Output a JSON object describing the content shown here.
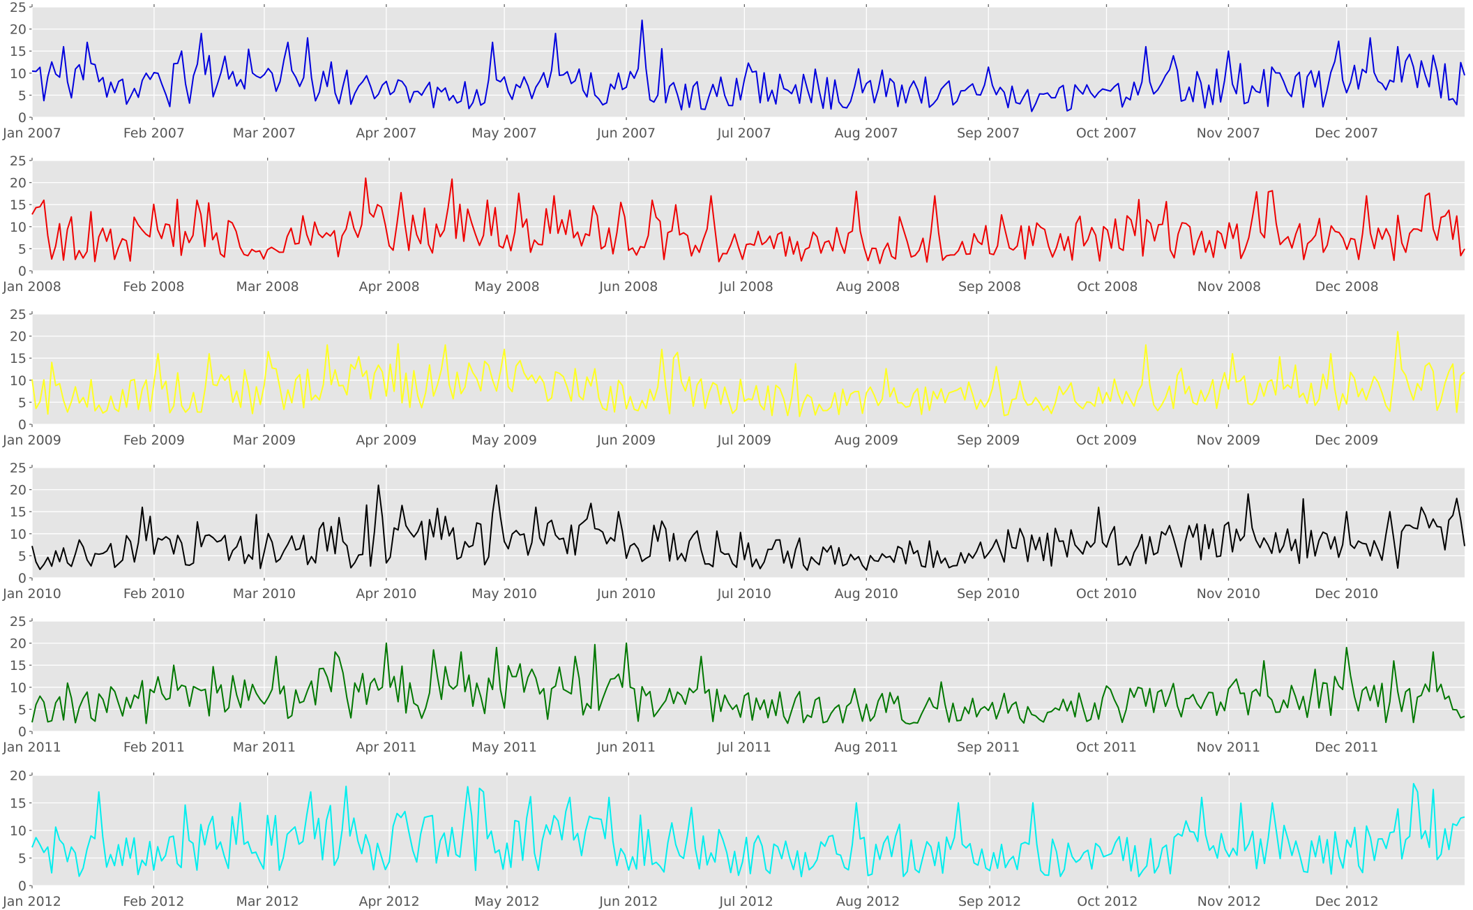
{
  "chart_data": [
    {
      "type": "line",
      "series": [
        {
          "color": "#0000dd"
        }
      ],
      "year": 2007,
      "ylim": [
        0,
        25
      ],
      "yticks": [
        "0",
        "5",
        "10",
        "15",
        "20",
        "25"
      ],
      "xticks": [
        "Jan 2007",
        "Feb 2007",
        "Mar 2007",
        "Apr 2007",
        "May 2007",
        "Jun 2007",
        "Jul 2007",
        "Aug 2007",
        "Sep 2007",
        "Oct 2007",
        "Nov 2007",
        "Dec 2007"
      ],
      "base": [
        7,
        6,
        7,
        7,
        6,
        6,
        7,
        8,
        6,
        8,
        9,
        9,
        8,
        6,
        6,
        5,
        5,
        5,
        6,
        5,
        6,
        6,
        7,
        7,
        7,
        6,
        6,
        5,
        5,
        5,
        6,
        6,
        6,
        5,
        6,
        7,
        6,
        6,
        5,
        5,
        5,
        5,
        4,
        4,
        5,
        5,
        5,
        5,
        6,
        6,
        6,
        7,
        7,
        6,
        6,
        7,
        6,
        6,
        7,
        8
      ],
      "peaks": [
        [
          8,
          16
        ],
        [
          14,
          17
        ],
        [
          38,
          15
        ],
        [
          65,
          17
        ],
        [
          70,
          18
        ],
        [
          117,
          17
        ],
        [
          133,
          19
        ],
        [
          155,
          22
        ],
        [
          283,
          16
        ],
        [
          304,
          15
        ],
        [
          340,
          18
        ],
        [
          347,
          16
        ]
      ]
    },
    {
      "type": "line",
      "series": [
        {
          "color": "#ee0000"
        }
      ],
      "year": 2008,
      "ylim": [
        0,
        25
      ],
      "yticks": [
        "0",
        "5",
        "10",
        "15",
        "20",
        "25"
      ],
      "xticks": [
        "Jan 2008",
        "Feb 2008",
        "Mar 2008",
        "Apr 2008",
        "May 2008",
        "Jun 2008",
        "Jul 2008",
        "Aug 2008",
        "Sep 2008",
        "Oct 2008",
        "Nov 2008",
        "Dec 2008"
      ],
      "base": [
        8,
        7,
        6,
        6,
        6,
        7,
        8,
        8,
        7,
        6,
        6,
        7,
        7,
        8,
        8,
        8,
        9,
        8,
        8,
        8,
        8,
        8,
        8,
        8,
        7,
        7,
        7,
        6,
        6,
        6,
        5,
        5,
        5,
        5,
        5,
        5,
        5,
        5,
        5,
        5,
        5,
        5,
        6,
        6,
        6,
        6,
        7,
        7,
        6,
        6,
        6,
        7,
        7,
        6,
        6,
        6,
        6,
        7,
        8,
        8
      ],
      "peaks": [
        [
          3,
          16
        ],
        [
          42,
          16
        ],
        [
          85,
          21
        ],
        [
          116,
          16
        ],
        [
          133,
          17
        ],
        [
          158,
          16
        ],
        [
          173,
          17
        ],
        [
          210,
          18
        ],
        [
          230,
          17
        ],
        [
          340,
          17
        ],
        [
          355,
          17
        ]
      ]
    },
    {
      "type": "line",
      "series": [
        {
          "color": "#ffff22"
        }
      ],
      "year": 2009,
      "ylim": [
        0,
        25
      ],
      "yticks": [
        "0",
        "5",
        "10",
        "15",
        "20",
        "25"
      ],
      "xticks": [
        "Jan 2009",
        "Feb 2009",
        "Mar 2009",
        "Apr 2009",
        "May 2009",
        "Jun 2009",
        "Jul 2009",
        "Aug 2009",
        "Sep 2009",
        "Oct 2009",
        "Nov 2009",
        "Dec 2009"
      ],
      "base": [
        6,
        6,
        6,
        6,
        6,
        6,
        7,
        7,
        7,
        7,
        7,
        7,
        8,
        8,
        8,
        8,
        8,
        8,
        8,
        8,
        8,
        7,
        7,
        7,
        6,
        6,
        6,
        6,
        6,
        6,
        6,
        5,
        5,
        5,
        5,
        5,
        5,
        5,
        5,
        6,
        6,
        6,
        6,
        6,
        6,
        6,
        6,
        6,
        7,
        7,
        7,
        7,
        6,
        6,
        6,
        6,
        6,
        6,
        7,
        8
      ],
      "peaks": [
        [
          32,
          16
        ],
        [
          45,
          16
        ],
        [
          75,
          18
        ],
        [
          105,
          18
        ],
        [
          120,
          17
        ],
        [
          160,
          17
        ],
        [
          283,
          18
        ],
        [
          305,
          16
        ],
        [
          330,
          16
        ],
        [
          347,
          21
        ]
      ]
    },
    {
      "type": "line",
      "series": [
        {
          "color": "#000000"
        }
      ],
      "year": 2010,
      "ylim": [
        0,
        25
      ],
      "yticks": [
        "0",
        "5",
        "10",
        "15",
        "20",
        "25"
      ],
      "xticks": [
        "Jan 2010",
        "Feb 2010",
        "Mar 2010",
        "Apr 2010",
        "May 2010",
        "Jun 2010",
        "Jul 2010",
        "Aug 2010",
        "Sep 2010",
        "Oct 2010",
        "Nov 2010",
        "Dec 2010"
      ],
      "base": [
        4,
        4,
        5,
        6,
        6,
        6,
        6,
        6,
        6,
        6,
        6,
        7,
        7,
        7,
        8,
        8,
        8,
        8,
        8,
        8,
        7,
        7,
        7,
        7,
        7,
        7,
        7,
        6,
        6,
        6,
        5,
        5,
        5,
        5,
        4,
        4,
        4,
        5,
        5,
        5,
        6,
        6,
        6,
        6,
        6,
        6,
        6,
        6,
        6,
        7,
        7,
        7,
        7,
        7,
        7,
        5,
        5,
        6,
        7,
        8
      ],
      "peaks": [
        [
          28,
          16
        ],
        [
          88,
          21
        ],
        [
          118,
          21
        ],
        [
          128,
          16
        ],
        [
          149,
          15
        ],
        [
          271,
          16
        ],
        [
          309,
          19
        ],
        [
          334,
          15
        ],
        [
          345,
          15
        ],
        [
          353,
          16
        ],
        [
          362,
          18
        ]
      ]
    },
    {
      "type": "line",
      "series": [
        {
          "color": "#007700"
        }
      ],
      "year": 2011,
      "ylim": [
        0,
        25
      ],
      "yticks": [
        "0",
        "5",
        "10",
        "15",
        "20",
        "25"
      ],
      "xticks": [
        "Jan 2011",
        "Feb 2011",
        "Mar 2011",
        "Apr 2011",
        "May 2011",
        "Jun 2011",
        "Jul 2011",
        "Aug 2011",
        "Sep 2011",
        "Oct 2011",
        "Nov 2011",
        "Dec 2011"
      ],
      "base": [
        5,
        5,
        5,
        5,
        5,
        6,
        6,
        6,
        7,
        7,
        7,
        7,
        8,
        8,
        8,
        9,
        9,
        9,
        9,
        9,
        9,
        8,
        8,
        8,
        8,
        7,
        7,
        6,
        6,
        6,
        5,
        5,
        5,
        5,
        5,
        5,
        5,
        5,
        5,
        5,
        5,
        5,
        5,
        5,
        5,
        6,
        6,
        6,
        6,
        6,
        6,
        6,
        6,
        6,
        7,
        7,
        7,
        6,
        6,
        6
      ],
      "peaks": [
        [
          36,
          15
        ],
        [
          62,
          17
        ],
        [
          77,
          18
        ],
        [
          90,
          20
        ],
        [
          109,
          18
        ],
        [
          118,
          19
        ],
        [
          138,
          17
        ],
        [
          151,
          20
        ],
        [
          170,
          17
        ],
        [
          313,
          16
        ],
        [
          334,
          19
        ],
        [
          356,
          18
        ]
      ]
    },
    {
      "type": "line",
      "series": [
        {
          "color": "#00eeee"
        }
      ],
      "year": 2012,
      "ylim": [
        0,
        20
      ],
      "yticks": [
        "0",
        "5",
        "10",
        "15",
        "20"
      ],
      "xticks": [
        "Jan 2012",
        "Feb 2012",
        "Mar 2012",
        "Apr 2012",
        "May 2012",
        "Jun 2012",
        "Jul 2012",
        "Aug 2012",
        "Sep 2012",
        "Oct 2012",
        "Nov 2012",
        "Dec 2012"
      ],
      "base": [
        5,
        5,
        5,
        5,
        6,
        6,
        6,
        7,
        7,
        7,
        7,
        8,
        8,
        8,
        8,
        8,
        8,
        8,
        7,
        7,
        7,
        7,
        7,
        7,
        7,
        7,
        6,
        6,
        6,
        6,
        5,
        5,
        5,
        5,
        5,
        5,
        5,
        5,
        5,
        5,
        5,
        5,
        5,
        5,
        5,
        5,
        5,
        5,
        5,
        6,
        6,
        6,
        6,
        5,
        5,
        5,
        6,
        7,
        8,
        8
      ],
      "peaks": [
        [
          17,
          17
        ],
        [
          53,
          15
        ],
        [
          71,
          17
        ],
        [
          80,
          18
        ],
        [
          115,
          17
        ],
        [
          137,
          16
        ],
        [
          147,
          16
        ],
        [
          210,
          15
        ],
        [
          236,
          15
        ],
        [
          255,
          15
        ],
        [
          298,
          16
        ],
        [
          316,
          15
        ],
        [
          353,
          17
        ]
      ]
    }
  ]
}
